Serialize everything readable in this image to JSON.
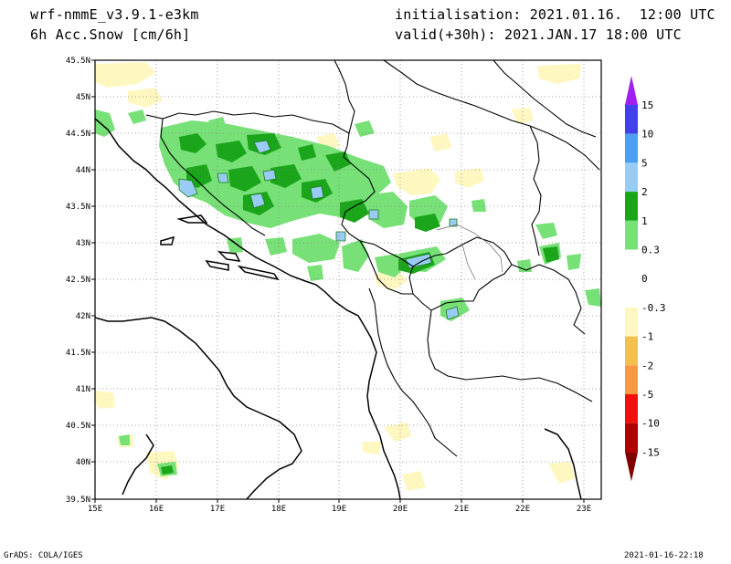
{
  "header": {
    "model": "wrf-nmmE_v3.9.1-e3km",
    "field": "6h Acc.Snow [cm/6h]",
    "initialisation": "initialisation: 2021.01.16.  12:00 UTC",
    "valid": "valid(+30h): 2021.JAN.17 18:00 UTC"
  },
  "footer": {
    "credit": "GrADS: COLA/IGES",
    "timestamp": "2021-01-16-22:18"
  },
  "map": {
    "lat_labels": [
      "45.5N",
      "45N",
      "44.5N",
      "44N",
      "43.5N",
      "43N",
      "42.5N",
      "42N",
      "41.5N",
      "41N",
      "40.5N",
      "40N",
      "39.5N"
    ],
    "lon_labels": [
      "15E",
      "16E",
      "17E",
      "18E",
      "19E",
      "20E",
      "21E",
      "22E",
      "23E"
    ],
    "lat_range": [
      39.5,
      45.5
    ],
    "lon_range": [
      15,
      23.3
    ],
    "grid": "dotted"
  },
  "colorbar": {
    "labels": [
      "15",
      "10",
      "5",
      "2",
      "1",
      "0.3",
      "0",
      "-0.3",
      "-1",
      "-2",
      "-5",
      "-10",
      "-15"
    ],
    "colors": [
      "#a020f0",
      "#4040f0",
      "#4f9ff0",
      "#99ccf5",
      "#1aa51a",
      "#77e077",
      "#ffffff",
      "#ffffff",
      "#fff7c0",
      "#f2c14a",
      "#f59a40",
      "#f01010",
      "#b00000",
      "#800000"
    ]
  }
}
